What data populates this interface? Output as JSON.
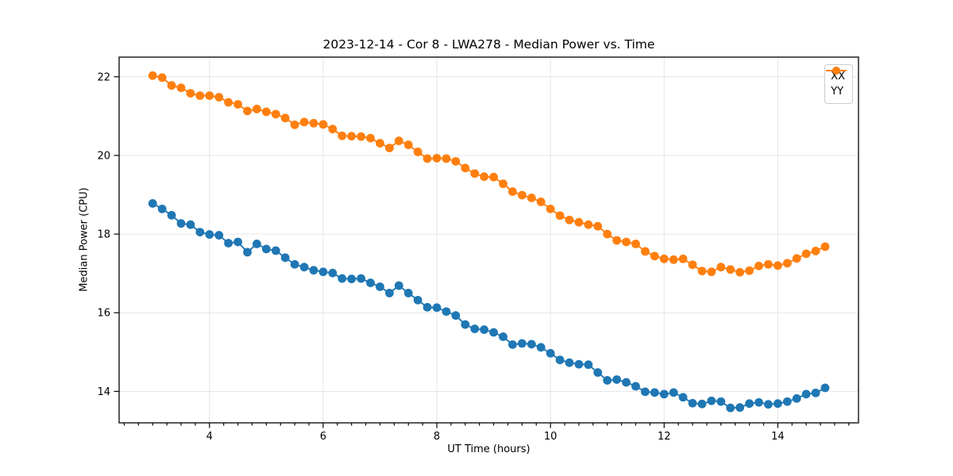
{
  "chart_data": {
    "type": "line",
    "title": "2023-12-14 - Cor 8 - LWA278 - Median Power vs. Time",
    "xlabel": "UT Time (hours)",
    "ylabel": "Median Power (CPU)",
    "xlim": [
      2.41,
      15.42
    ],
    "ylim": [
      13.2,
      22.5
    ],
    "x_ticks": [
      4,
      6,
      8,
      10,
      12,
      14
    ],
    "y_ticks": [
      14,
      16,
      18,
      20,
      22
    ],
    "x_minor_tick_step": 0.25,
    "grid": true,
    "legend_position": "upper right",
    "marker": "circle",
    "x": [
      3.0,
      3.167,
      3.333,
      3.5,
      3.667,
      3.833,
      4.0,
      4.167,
      4.333,
      4.5,
      4.667,
      4.833,
      5.0,
      5.167,
      5.333,
      5.5,
      5.667,
      5.833,
      6.0,
      6.167,
      6.333,
      6.5,
      6.667,
      6.833,
      7.0,
      7.167,
      7.333,
      7.5,
      7.667,
      7.833,
      8.0,
      8.167,
      8.333,
      8.5,
      8.667,
      8.833,
      9.0,
      9.167,
      9.333,
      9.5,
      9.667,
      9.833,
      10.0,
      10.167,
      10.333,
      10.5,
      10.667,
      10.833,
      11.0,
      11.167,
      11.333,
      11.5,
      11.667,
      11.833,
      12.0,
      12.167,
      12.333,
      12.5,
      12.667,
      12.833,
      13.0,
      13.167,
      13.333,
      13.5,
      13.667,
      13.833,
      14.0,
      14.167,
      14.333,
      14.5,
      14.667,
      14.833
    ],
    "series": [
      {
        "name": "XX",
        "color": "#1f77b4",
        "values": [
          18.78,
          18.64,
          18.48,
          18.27,
          18.24,
          18.05,
          17.99,
          17.97,
          17.77,
          17.8,
          17.54,
          17.75,
          17.62,
          17.58,
          17.4,
          17.23,
          17.16,
          17.08,
          17.04,
          17.01,
          16.87,
          16.86,
          16.87,
          16.76,
          16.66,
          16.5,
          16.69,
          16.5,
          16.32,
          16.14,
          16.13,
          16.03,
          15.93,
          15.7,
          15.59,
          15.57,
          15.5,
          15.39,
          15.19,
          15.22,
          15.2,
          15.12,
          14.97,
          14.8,
          14.73,
          14.69,
          14.68,
          14.48,
          14.28,
          14.3,
          14.23,
          14.13,
          13.99,
          13.97,
          13.93,
          13.97,
          13.85,
          13.7,
          13.68,
          13.76,
          13.74,
          13.58,
          13.59,
          13.69,
          13.72,
          13.67,
          13.69,
          13.74,
          13.82,
          13.93,
          13.96,
          14.09
        ]
      },
      {
        "name": "YY",
        "color": "#ff7f0e",
        "values": [
          22.03,
          21.98,
          21.78,
          21.72,
          21.58,
          21.52,
          21.52,
          21.48,
          21.35,
          21.3,
          21.13,
          21.18,
          21.11,
          21.05,
          20.95,
          20.78,
          20.85,
          20.82,
          20.79,
          20.67,
          20.5,
          20.49,
          20.48,
          20.44,
          20.31,
          20.19,
          20.37,
          20.27,
          20.09,
          19.92,
          19.93,
          19.92,
          19.85,
          19.68,
          19.54,
          19.46,
          19.45,
          19.28,
          19.08,
          18.99,
          18.92,
          18.82,
          18.64,
          18.47,
          18.36,
          18.3,
          18.24,
          18.2,
          18.0,
          17.84,
          17.8,
          17.75,
          17.56,
          17.44,
          17.37,
          17.35,
          17.37,
          17.22,
          17.06,
          17.04,
          17.16,
          17.1,
          17.03,
          17.07,
          17.19,
          17.23,
          17.2,
          17.26,
          17.38,
          17.5,
          17.57,
          17.68
        ]
      }
    ]
  },
  "style": {
    "grid_color": "#e5e5e5",
    "spine_color": "#000000",
    "text_color": "#000000",
    "background": "#ffffff"
  }
}
